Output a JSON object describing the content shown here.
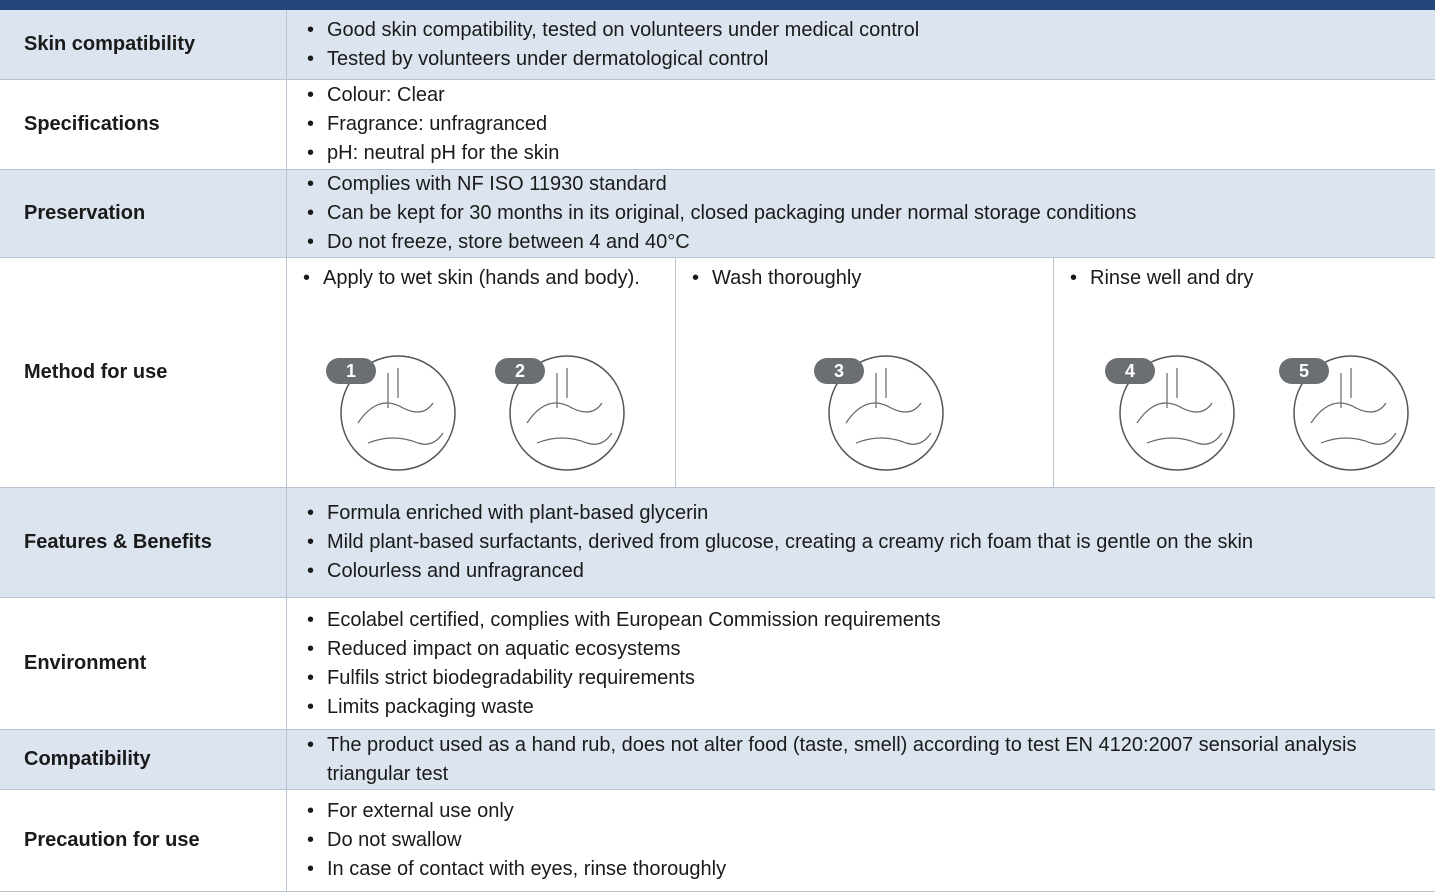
{
  "table": {
    "rows": [
      {
        "label": "Skin compatibility",
        "items": [
          "Good skin compatibility, tested on volunteers under medical control",
          "Tested by volunteers under dermatological control"
        ]
      },
      {
        "label": "Specifications",
        "items": [
          "Colour:  Clear",
          "Fragrance: unfragranced",
          "pH: neutral pH for the skin"
        ]
      },
      {
        "label": "Preservation",
        "items": [
          "Complies with NF ISO 11930 standard",
          "Can be kept for 30 months in its original, closed packaging under normal storage conditions",
          "Do not freeze, store between 4 and 40°C"
        ]
      },
      {
        "label": "Method for use",
        "columns": [
          {
            "items": [
              "Apply to wet skin (hands and body)."
            ],
            "steps": [
              "1",
              "2"
            ]
          },
          {
            "items": [
              "Wash thoroughly"
            ],
            "steps": [
              "3"
            ]
          },
          {
            "items": [
              "Rinse well and dry"
            ],
            "steps": [
              "4",
              "5"
            ]
          }
        ]
      },
      {
        "label": "Features & Benefits",
        "items": [
          "Formula enriched with plant-based glycerin",
          "Mild plant-based surfactants, derived from glucose, creating a creamy rich foam that is gentle on the skin",
          "Colourless and unfragranced"
        ]
      },
      {
        "label": "Environment",
        "items": [
          "Ecolabel certified, complies with European Commission requirements",
          "Reduced impact on aquatic ecosystems",
          "Fulfils strict biodegradability requirements",
          "Limits packaging waste"
        ]
      },
      {
        "label": "Compatibility",
        "items": [
          "The product used as a hand rub, does not alter food (taste, smell) according to test  EN 4120:2007 sensorial analysis triangular test"
        ]
      },
      {
        "label": "Precaution for use",
        "items": [
          "For external use only",
          "Do not swallow",
          "In case of contact with eyes, rinse thoroughly"
        ]
      }
    ]
  }
}
